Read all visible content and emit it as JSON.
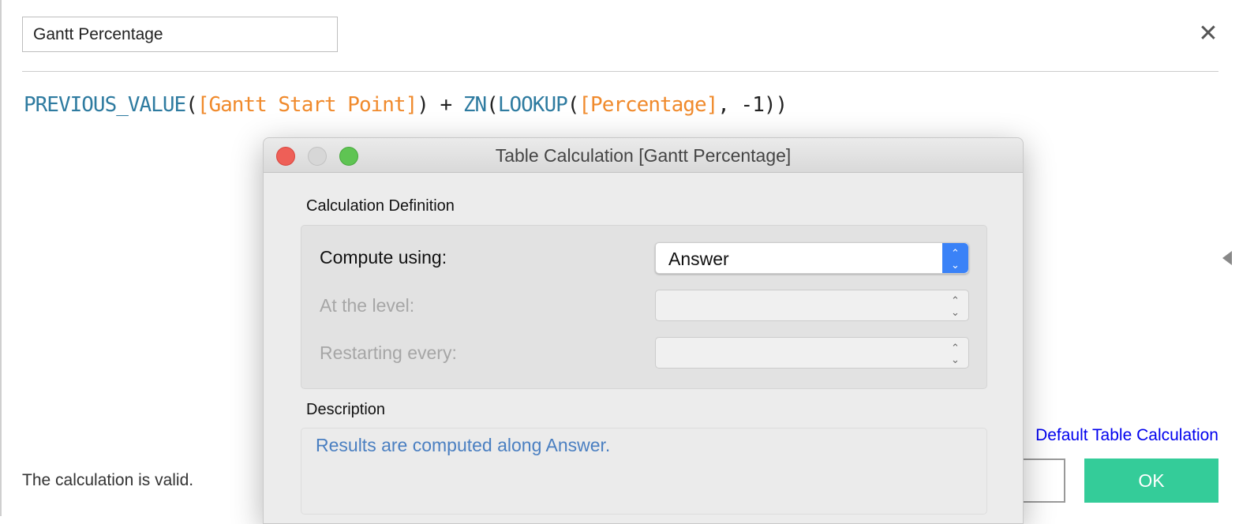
{
  "calc_name": "Gantt Percentage",
  "formula": {
    "fn1": "PREVIOUS_VALUE",
    "p1": "(",
    "f1": "[Gantt Start Point]",
    "p2": ") + ",
    "fn2": "ZN",
    "p3": "(",
    "fn3": "LOOKUP",
    "p4": "(",
    "f2": "[Percentage]",
    "p5": ", -1))"
  },
  "status": "The calculation is valid.",
  "default_link": "Default Table Calculation",
  "ok_label": "OK",
  "dialog": {
    "title": "Table Calculation [Gantt Percentage]",
    "section": "Calculation Definition",
    "compute_label": "Compute using:",
    "compute_value": "Answer",
    "level_label": "At the level:",
    "restart_label": "Restarting every:",
    "desc_heading": "Description",
    "description": "Results are computed along Answer."
  },
  "colors": {
    "function": "#2e7ba0",
    "field": "#f08a2c",
    "ok": "#34cc99",
    "link": "#0000ee"
  }
}
